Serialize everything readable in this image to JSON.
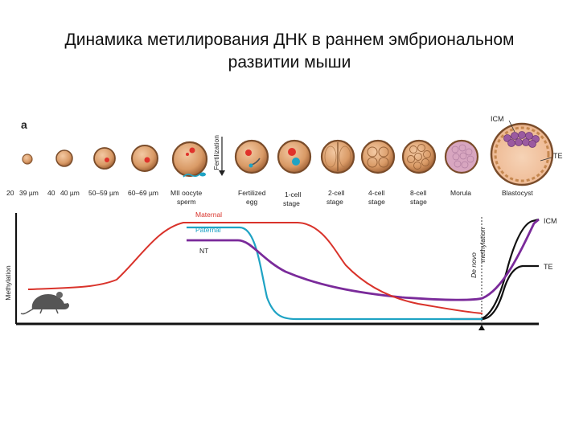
{
  "title": {
    "line1": "Динамика метилирования ДНК в раннем эмбриональном",
    "line2": "развитии мыши"
  },
  "figure": {
    "panel_letter": "a",
    "y_axis_label": "Methylation",
    "fertilization_label": "Fertilization",
    "de_novo_label": "De novo",
    "de_novo_label2": "methylation",
    "stages": [
      {
        "size": "20"
      },
      {
        "size": "39 µm"
      },
      {
        "size": "40"
      },
      {
        "size": "40 µm"
      },
      {
        "size": "50–59 µm"
      },
      {
        "size": "60–69 µm"
      },
      {
        "label1": "MII oocyte",
        "label2": "sperm"
      },
      {
        "label1": "Fertilized",
        "label2": "egg"
      },
      {
        "label1": "1-cell",
        "label2": "stage"
      },
      {
        "label1": "2-cell",
        "label2": "stage"
      },
      {
        "label1": "4-cell",
        "label2": "stage"
      },
      {
        "label1": "8-cell",
        "label2": "stage"
      },
      {
        "label1": "Morula"
      },
      {
        "label1": "Blastocyst"
      }
    ],
    "blastocyst_labels": {
      "icm": "ICM",
      "te": "TE"
    },
    "series": [
      {
        "name": "Maternal",
        "color": "#d9332b"
      },
      {
        "name": "Paternal",
        "color": "#1fa3c4"
      },
      {
        "name": "NT",
        "color": "#7a2a9a"
      }
    ],
    "end_labels": {
      "icm": "ICM",
      "te": "TE"
    }
  }
}
